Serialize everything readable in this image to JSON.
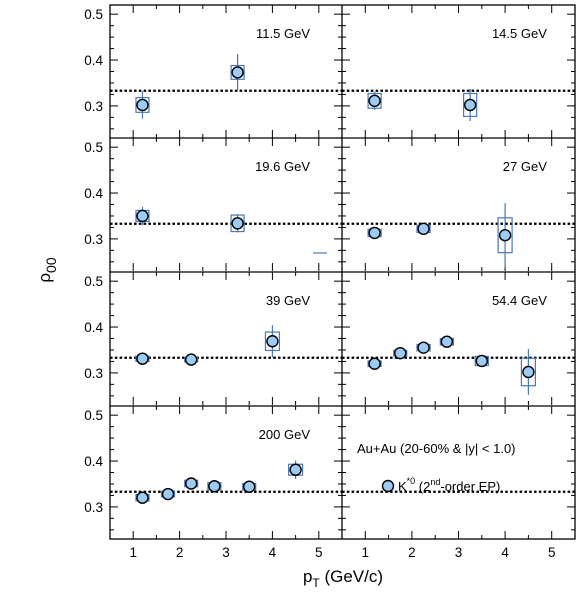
{
  "colors": {
    "marker_fill": "#9ecbf2",
    "marker_edge": "#000000",
    "syst_box": "#4a78b5",
    "stat_bar": "#4a78b5",
    "reference_line": "#000000"
  },
  "chart_data": {
    "type": "scatter",
    "layout": "4x2 grid of panels sharing axes",
    "xlabel_main": "p",
    "xlabel_sub": "T",
    "xlabel_unit": " (GeV/c)",
    "ylabel_main": "ρ",
    "ylabel_sub": "00",
    "xlim": [
      0.5,
      5.5
    ],
    "ylim": [
      0.23,
      0.52
    ],
    "xticks": [
      1,
      2,
      3,
      4,
      5
    ],
    "yticks": [
      0.3,
      0.4,
      0.5
    ],
    "reference_line": 0.333,
    "reference_style": "dotted",
    "legend": {
      "marker": "circle",
      "label_main": "K",
      "label_sup": "*0",
      "label_open": " (2",
      "label_ord_sup": "nd",
      "label_close": "-order EP)",
      "position": "bottom-right panel"
    },
    "annotation": "Au+Au (20-60% & |y| < 1.0)",
    "panels": [
      {
        "energy": "11.5 GeV",
        "points": [
          {
            "x": 1.2,
            "y": 0.302,
            "stat": 0.03,
            "sys_w": 0.28,
            "sys": 0.016
          },
          {
            "x": 3.25,
            "y": 0.373,
            "stat": 0.04,
            "sys_w": 0.28,
            "sys": 0.015
          }
        ]
      },
      {
        "energy": "14.5 GeV",
        "points": [
          {
            "x": 1.2,
            "y": 0.311,
            "stat": 0.02,
            "sys_w": 0.28,
            "sys": 0.016
          },
          {
            "x": 3.25,
            "y": 0.302,
            "stat": 0.035,
            "sys_w": 0.28,
            "sys": 0.025
          }
        ]
      },
      {
        "energy": "19.6 GeV",
        "points": [
          {
            "x": 1.2,
            "y": 0.35,
            "stat": 0.02,
            "sys_w": 0.28,
            "sys": 0.012
          },
          {
            "x": 3.25,
            "y": 0.334,
            "stat": 0.02,
            "sys_w": 0.28,
            "sys": 0.018
          }
        ]
      },
      {
        "energy": "27 GeV",
        "points": [
          {
            "x": 1.2,
            "y": 0.313,
            "stat": 0.008,
            "sys_w": 0.28,
            "sys": 0.008
          },
          {
            "x": 2.25,
            "y": 0.322,
            "stat": 0.008,
            "sys_w": 0.28,
            "sys": 0.008
          },
          {
            "x": 4.0,
            "y": 0.308,
            "stat": 0.07,
            "sys_w": 0.3,
            "sys": 0.038
          }
        ]
      },
      {
        "energy": "39 GeV",
        "points": [
          {
            "x": 1.2,
            "y": 0.331,
            "stat": 0.006,
            "sys_w": 0.28,
            "sys": 0.006
          },
          {
            "x": 2.25,
            "y": 0.329,
            "stat": 0.006,
            "sys_w": 0.28,
            "sys": 0.005
          },
          {
            "x": 4.0,
            "y": 0.369,
            "stat": 0.035,
            "sys_w": 0.3,
            "sys": 0.02
          }
        ]
      },
      {
        "energy": "54.4 GeV",
        "points": [
          {
            "x": 1.2,
            "y": 0.32,
            "stat": 0.006,
            "sys_w": 0.28,
            "sys": 0.006
          },
          {
            "x": 1.75,
            "y": 0.343,
            "stat": 0.006,
            "sys_w": 0.28,
            "sys": 0.006
          },
          {
            "x": 2.25,
            "y": 0.355,
            "stat": 0.006,
            "sys_w": 0.28,
            "sys": 0.007
          },
          {
            "x": 2.75,
            "y": 0.368,
            "stat": 0.006,
            "sys_w": 0.28,
            "sys": 0.007
          },
          {
            "x": 3.5,
            "y": 0.326,
            "stat": 0.013,
            "sys_w": 0.28,
            "sys": 0.01
          },
          {
            "x": 4.5,
            "y": 0.302,
            "stat": 0.05,
            "sys_w": 0.3,
            "sys": 0.03
          }
        ]
      },
      {
        "energy": "200 GeV",
        "points": [
          {
            "x": 1.2,
            "y": 0.32,
            "stat": 0.006,
            "sys_w": 0.28,
            "sys": 0.007
          },
          {
            "x": 1.75,
            "y": 0.328,
            "stat": 0.006,
            "sys_w": 0.28,
            "sys": 0.006
          },
          {
            "x": 2.25,
            "y": 0.351,
            "stat": 0.006,
            "sys_w": 0.28,
            "sys": 0.007
          },
          {
            "x": 2.75,
            "y": 0.345,
            "stat": 0.006,
            "sys_w": 0.28,
            "sys": 0.008
          },
          {
            "x": 3.5,
            "y": 0.344,
            "stat": 0.006,
            "sys_w": 0.28,
            "sys": 0.007
          },
          {
            "x": 4.5,
            "y": 0.381,
            "stat": 0.02,
            "sys_w": 0.3,
            "sys": 0.012
          }
        ]
      }
    ]
  }
}
